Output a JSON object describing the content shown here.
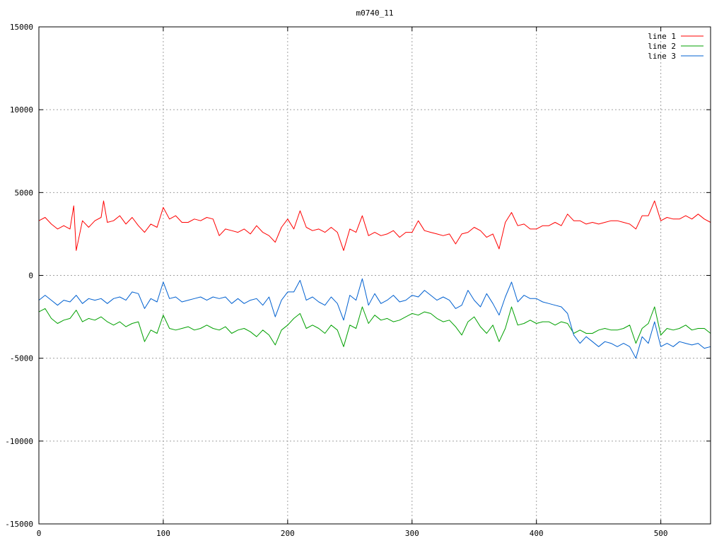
{
  "chart_data": {
    "type": "line",
    "title": "m0740_11",
    "xlabel": "",
    "ylabel": "",
    "xlim": [
      0,
      540
    ],
    "ylim": [
      -15000,
      15000
    ],
    "xticks": [
      0,
      100,
      200,
      300,
      400,
      500
    ],
    "yticks": [
      -15000,
      -10000,
      -5000,
      0,
      5000,
      10000,
      15000
    ],
    "grid": true,
    "legend_position": "top-right",
    "series": [
      {
        "name": "line 1",
        "color": "#ff0000",
        "x": [
          0,
          5,
          10,
          15,
          20,
          25,
          28,
          30,
          35,
          40,
          45,
          50,
          52,
          55,
          60,
          65,
          70,
          75,
          80,
          85,
          90,
          95,
          100,
          105,
          110,
          115,
          120,
          125,
          130,
          135,
          140,
          145,
          150,
          155,
          160,
          165,
          170,
          175,
          180,
          185,
          190,
          195,
          200,
          205,
          210,
          215,
          220,
          225,
          230,
          235,
          240,
          245,
          250,
          255,
          260,
          265,
          270,
          275,
          280,
          285,
          290,
          295,
          300,
          305,
          310,
          315,
          320,
          325,
          330,
          335,
          340,
          345,
          350,
          355,
          360,
          365,
          370,
          375,
          380,
          385,
          390,
          395,
          400,
          405,
          410,
          415,
          420,
          425,
          430,
          435,
          440,
          445,
          450,
          455,
          460,
          465,
          470,
          475,
          480,
          485,
          490,
          495,
          500,
          505,
          510,
          515,
          520,
          525,
          530,
          535,
          540
        ],
        "y": [
          3300,
          3500,
          3100,
          2800,
          3000,
          2800,
          4200,
          1500,
          3300,
          2900,
          3300,
          3500,
          4500,
          3200,
          3300,
          3600,
          3100,
          3500,
          3000,
          2600,
          3100,
          2900,
          4100,
          3400,
          3600,
          3200,
          3200,
          3400,
          3300,
          3500,
          3400,
          2400,
          2800,
          2700,
          2600,
          2800,
          2500,
          3000,
          2600,
          2400,
          2000,
          2900,
          3400,
          2800,
          3900,
          2900,
          2700,
          2800,
          2600,
          2900,
          2600,
          1500,
          2800,
          2600,
          3600,
          2400,
          2600,
          2400,
          2500,
          2700,
          2300,
          2600,
          2600,
          3300,
          2700,
          2600,
          2500,
          2400,
          2500,
          1900,
          2500,
          2600,
          2900,
          2700,
          2300,
          2500,
          1600,
          3200,
          3800,
          3000,
          3100,
          2800,
          2800,
          3000,
          3000,
          3200,
          3000,
          3700,
          3300,
          3300,
          3100,
          3200,
          3100,
          3200,
          3300,
          3300,
          3200,
          3100,
          2800,
          3600,
          3600,
          4500,
          3300,
          3500,
          3400,
          3400,
          3600,
          3400,
          3700,
          3400,
          3200
        ]
      },
      {
        "name": "line 2",
        "color": "#00a000",
        "x": [
          0,
          5,
          10,
          15,
          20,
          25,
          30,
          35,
          40,
          45,
          50,
          55,
          60,
          65,
          70,
          75,
          80,
          85,
          90,
          95,
          100,
          105,
          110,
          115,
          120,
          125,
          130,
          135,
          140,
          145,
          150,
          155,
          160,
          165,
          170,
          175,
          180,
          185,
          190,
          195,
          200,
          205,
          210,
          215,
          220,
          225,
          230,
          235,
          240,
          245,
          250,
          255,
          260,
          265,
          270,
          275,
          280,
          285,
          290,
          295,
          300,
          305,
          310,
          315,
          320,
          325,
          330,
          335,
          340,
          345,
          350,
          355,
          360,
          365,
          370,
          375,
          380,
          385,
          390,
          395,
          400,
          405,
          410,
          415,
          420,
          425,
          430,
          435,
          440,
          445,
          450,
          455,
          460,
          465,
          470,
          475,
          480,
          485,
          490,
          495,
          500,
          505,
          510,
          515,
          520,
          525,
          530,
          535,
          540
        ],
        "y": [
          -2200,
          -2000,
          -2600,
          -2900,
          -2700,
          -2600,
          -2100,
          -2800,
          -2600,
          -2700,
          -2500,
          -2800,
          -3000,
          -2800,
          -3100,
          -2900,
          -2800,
          -4000,
          -3300,
          -3500,
          -2400,
          -3200,
          -3300,
          -3200,
          -3100,
          -3300,
          -3200,
          -3000,
          -3200,
          -3300,
          -3100,
          -3500,
          -3300,
          -3200,
          -3400,
          -3700,
          -3300,
          -3600,
          -4200,
          -3300,
          -3000,
          -2600,
          -2300,
          -3200,
          -3000,
          -3200,
          -3500,
          -3000,
          -3300,
          -4300,
          -3000,
          -3200,
          -1900,
          -2900,
          -2400,
          -2700,
          -2600,
          -2800,
          -2700,
          -2500,
          -2300,
          -2400,
          -2200,
          -2300,
          -2600,
          -2800,
          -2700,
          -3100,
          -3600,
          -2800,
          -2500,
          -3100,
          -3500,
          -3000,
          -4000,
          -3200,
          -1900,
          -3000,
          -2900,
          -2700,
          -2900,
          -2800,
          -2800,
          -3000,
          -2800,
          -2900,
          -3500,
          -3300,
          -3500,
          -3500,
          -3300,
          -3200,
          -3300,
          -3300,
          -3200,
          -3000,
          -4100,
          -3200,
          -2900,
          -1900,
          -3600,
          -3200,
          -3300,
          -3200,
          -3000,
          -3300,
          -3200,
          -3200,
          -3500
        ]
      },
      {
        "name": "line 3",
        "color": "#0060d0",
        "x": [
          0,
          5,
          10,
          15,
          20,
          25,
          30,
          35,
          40,
          45,
          50,
          55,
          60,
          65,
          70,
          75,
          80,
          85,
          90,
          95,
          100,
          105,
          110,
          115,
          120,
          125,
          130,
          135,
          140,
          145,
          150,
          155,
          160,
          165,
          170,
          175,
          180,
          185,
          190,
          195,
          200,
          205,
          210,
          215,
          220,
          225,
          230,
          235,
          240,
          245,
          250,
          255,
          260,
          265,
          270,
          275,
          280,
          285,
          290,
          295,
          300,
          305,
          310,
          315,
          320,
          325,
          330,
          335,
          340,
          345,
          350,
          355,
          360,
          365,
          370,
          375,
          380,
          385,
          390,
          395,
          400,
          405,
          410,
          415,
          420,
          425,
          430,
          435,
          440,
          445,
          450,
          455,
          460,
          465,
          470,
          475,
          480,
          485,
          490,
          495,
          500,
          505,
          510,
          515,
          520,
          525,
          530,
          535,
          540
        ],
        "y": [
          -1500,
          -1200,
          -1500,
          -1800,
          -1500,
          -1600,
          -1200,
          -1700,
          -1400,
          -1500,
          -1400,
          -1700,
          -1400,
          -1300,
          -1500,
          -1000,
          -1100,
          -2000,
          -1400,
          -1600,
          -400,
          -1400,
          -1300,
          -1600,
          -1500,
          -1400,
          -1300,
          -1500,
          -1300,
          -1400,
          -1300,
          -1700,
          -1400,
          -1700,
          -1500,
          -1400,
          -1800,
          -1300,
          -2500,
          -1500,
          -1000,
          -1000,
          -300,
          -1500,
          -1300,
          -1600,
          -1800,
          -1300,
          -1700,
          -2700,
          -1200,
          -1500,
          -200,
          -1800,
          -1100,
          -1700,
          -1500,
          -1200,
          -1600,
          -1500,
          -1200,
          -1300,
          -900,
          -1200,
          -1500,
          -1300,
          -1500,
          -2000,
          -1800,
          -900,
          -1500,
          -1900,
          -1100,
          -1700,
          -2400,
          -1300,
          -400,
          -1600,
          -1200,
          -1400,
          -1400,
          -1600,
          -1700,
          -1800,
          -1900,
          -2300,
          -3600,
          -4100,
          -3700,
          -4000,
          -4300,
          -4000,
          -4100,
          -4300,
          -4100,
          -4300,
          -5000,
          -3700,
          -4100,
          -2800,
          -4300,
          -4100,
          -4300,
          -4000,
          -4100,
          -4200,
          -4100,
          -4400,
          -4300
        ]
      }
    ]
  }
}
